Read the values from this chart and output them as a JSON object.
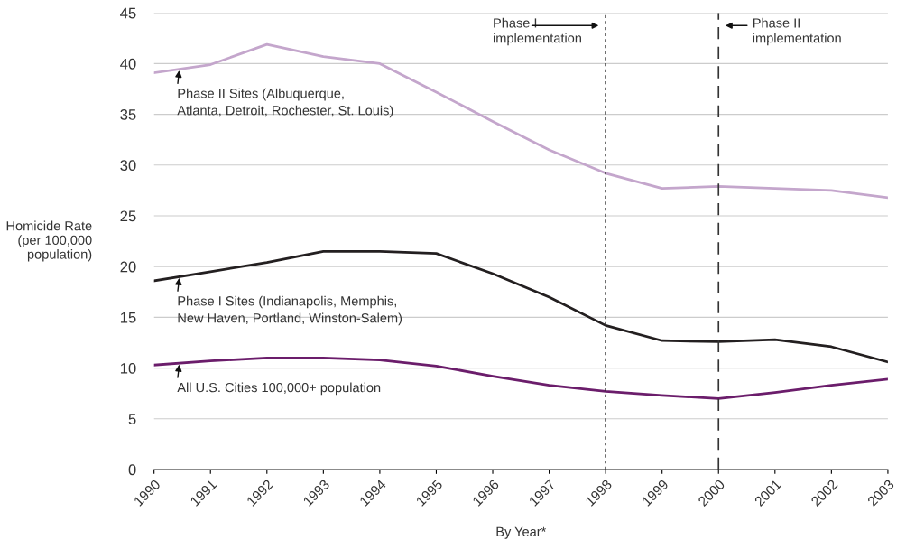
{
  "chart_data": {
    "type": "line",
    "xlabel": "By Year*",
    "ylabel": "Homicide Rate\n(per 100,000\npopulation)",
    "categories": [
      "1990",
      "1991",
      "1992",
      "1993",
      "1994",
      "1995",
      "1996",
      "1997",
      "1998",
      "1999",
      "2000",
      "2001",
      "2002",
      "2003"
    ],
    "series": [
      {
        "name": "Phase II Sites (Albuquerque,\nAtlanta, Detroit, Rochester, St. Louis)",
        "color": "#c4a6cc",
        "values": [
          39.1,
          39.9,
          41.9,
          40.7,
          40.0,
          37.2,
          34.3,
          31.5,
          29.2,
          27.7,
          27.9,
          27.7,
          27.5,
          26.8
        ]
      },
      {
        "name": "Phase I Sites (Indianapolis, Memphis,\nNew Haven, Portland, Winston-Salem)",
        "color": "#231f20",
        "values": [
          18.6,
          19.5,
          20.4,
          21.5,
          21.5,
          21.3,
          19.3,
          17.0,
          14.2,
          12.7,
          12.6,
          12.8,
          12.1,
          10.6
        ]
      },
      {
        "name": "All U.S. Cities 100,000+ population",
        "color": "#6b1d6b",
        "values": [
          10.3,
          10.7,
          11.0,
          11.0,
          10.8,
          10.2,
          9.2,
          8.3,
          7.7,
          7.3,
          7.0,
          7.6,
          8.3,
          8.9
        ]
      }
    ],
    "ylim": [
      0,
      45
    ],
    "yticks": [
      0,
      5,
      10,
      15,
      20,
      25,
      30,
      35,
      40,
      45
    ],
    "grid": "y",
    "marker": "none",
    "line_style": "solid",
    "ref_lines": [
      {
        "axis": "x",
        "value": "1998",
        "label": "Phase I\nimplementation",
        "line_style": "dotted",
        "color": "#333333"
      },
      {
        "axis": "x",
        "value": "2000",
        "label": "Phase II\nimplementation",
        "line_style": "dashed",
        "color": "#333333"
      }
    ]
  }
}
